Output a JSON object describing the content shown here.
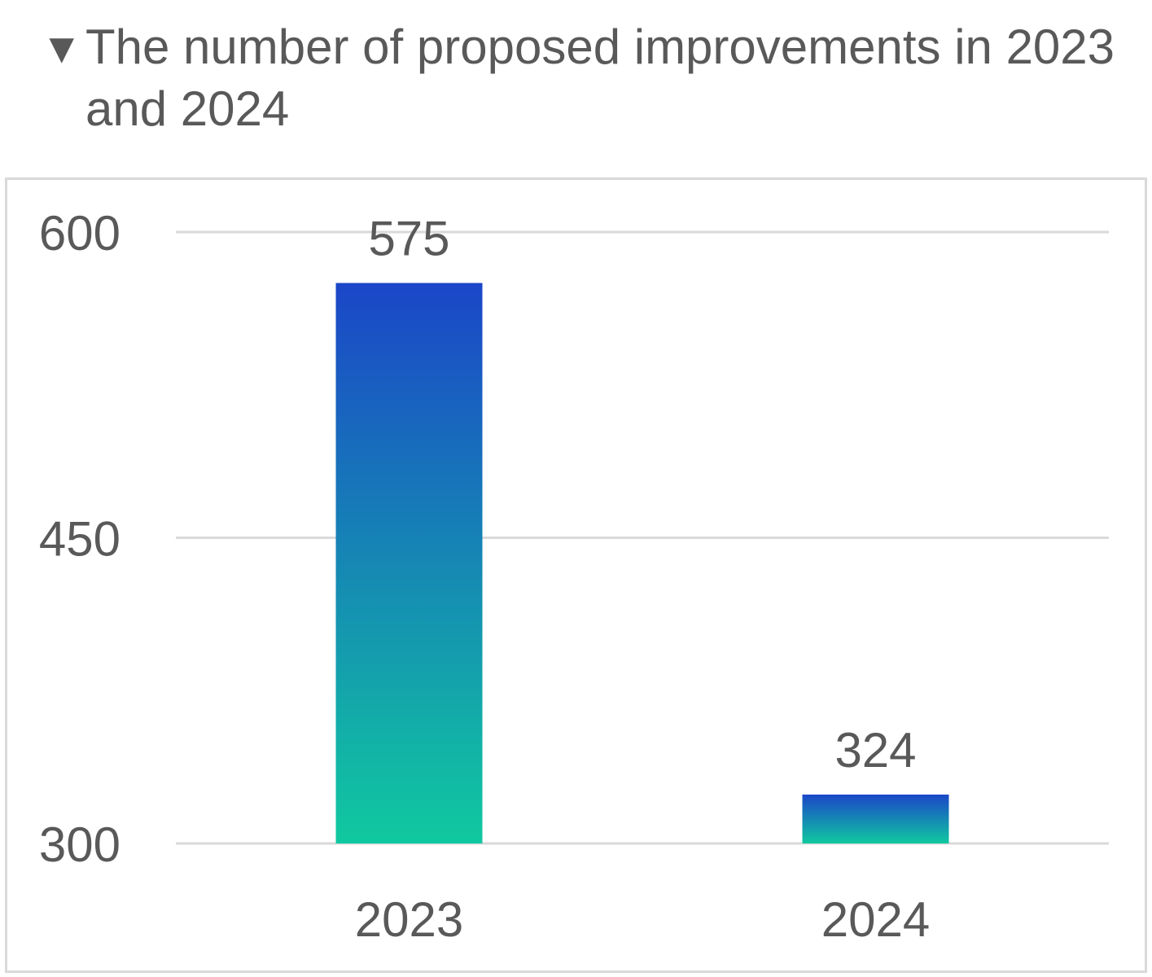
{
  "title_marker_icon": "down-triangle-icon",
  "title_marker": "▼",
  "chart_data": {
    "type": "bar",
    "title": "The number of proposed improvements in 2023 and 2024",
    "xlabel": "",
    "ylabel": "",
    "categories": [
      "2023",
      "2024"
    ],
    "values": [
      575,
      324
    ],
    "data_labels": [
      "575",
      "324"
    ],
    "ylim": [
      300,
      600
    ],
    "yticks": [
      300,
      450,
      600
    ],
    "ytick_labels": [
      "300",
      "450",
      "600"
    ],
    "grid": true,
    "legend": "none",
    "colors": {
      "bar_gradient_top": "#1b46c8",
      "bar_gradient_bottom": "#10c9a0",
      "gridline": "#d9d9d9",
      "text": "#595959"
    }
  }
}
